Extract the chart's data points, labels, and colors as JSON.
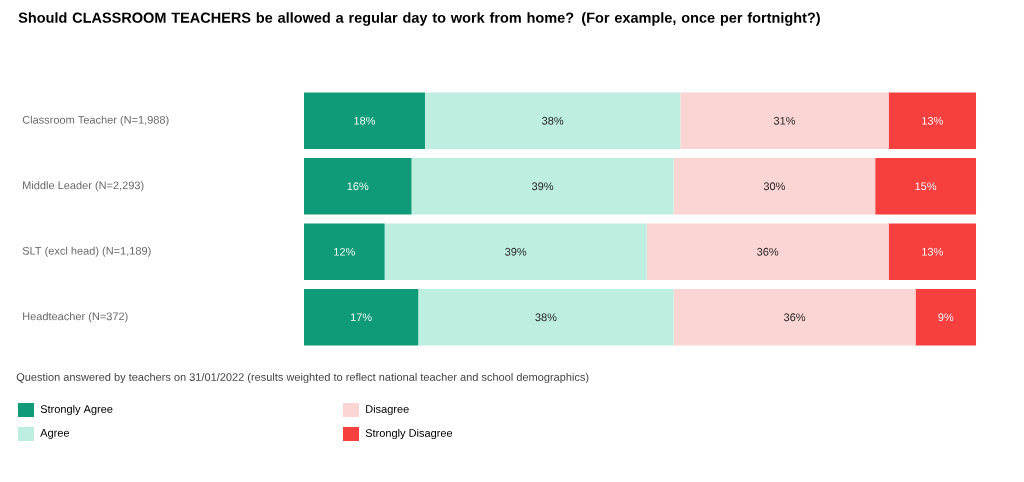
{
  "chart_data": {
    "type": "bar",
    "orientation": "horizontal",
    "stacked": true,
    "title": "Should CLASSROOM TEACHERS be allowed a regular day to work from home? (For example, once per fortnight?)",
    "categories": [
      "Classroom Teacher          (N=1,988)",
      "Middle Leader                (N=2,293)",
      "SLT (excl head)             (N=1,189)",
      "Headteacher                  (N=372)"
    ],
    "series": [
      {
        "name": "Strongly Agree",
        "color": "#0f9b77",
        "values": [
          18,
          16,
          12,
          17
        ],
        "value_labels": [
          "18%",
          "16%",
          "12%",
          "17%"
        ]
      },
      {
        "name": "Agree",
        "color": "#bdeee0",
        "values": [
          38,
          39,
          39,
          38
        ],
        "value_labels": [
          "38%",
          "39%",
          "39%",
          "38%"
        ]
      },
      {
        "name": "Disagree",
        "color": "#fbd5d3",
        "values": [
          31,
          30,
          36,
          36
        ],
        "value_labels": [
          "31%",
          "30%",
          "36%",
          "36%"
        ]
      },
      {
        "name": "Strongly Disagree",
        "color": "#f5403f",
        "values": [
          13,
          15,
          13,
          9
        ],
        "value_labels": [
          "13%",
          "15%",
          "13%",
          "9%"
        ]
      }
    ],
    "legend": "bottom left",
    "annotations": [
      "Question answered by teachers on 31/01/2022 (results weighted to reflect national teacher and school demographics)"
    ]
  }
}
